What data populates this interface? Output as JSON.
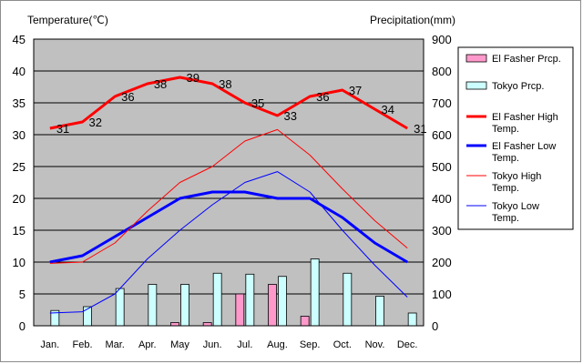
{
  "chart_data": {
    "type": "bar",
    "categories": [
      "Jan.",
      "Feb.",
      "Mar.",
      "Apr.",
      "May",
      "Jun.",
      "Jul.",
      "Aug.",
      "Sep.",
      "Oct.",
      "Nov.",
      "Dec."
    ],
    "ylabel_left": "Temperature(℃)",
    "ylabel_right": "Precipitation(mm)",
    "ylim_left": [
      0,
      45
    ],
    "ylim_right": [
      0,
      900
    ],
    "yticks_left": [
      "0",
      "5",
      "10",
      "15",
      "20",
      "25",
      "30",
      "35",
      "40",
      "45"
    ],
    "yticks_right": [
      "0",
      "100",
      "200",
      "300",
      "400",
      "500",
      "600",
      "700",
      "800",
      "900"
    ],
    "grid": true,
    "legend_position": "right",
    "bar_series": [
      {
        "name": "El Fasher Prcp.",
        "axis": "right",
        "color": "#ff99cc",
        "values": [
          0,
          0,
          0,
          0,
          10,
          10,
          100,
          130,
          30,
          0,
          0,
          0
        ]
      },
      {
        "name": "Tokyo Prcp.",
        "axis": "right",
        "color": "#ccffff",
        "values": [
          48,
          60,
          117,
          130,
          130,
          165,
          162,
          155,
          210,
          165,
          93,
          40
        ]
      }
    ],
    "line_series": [
      {
        "name": "El Fasher High Temp.",
        "axis": "left",
        "color": "#ff0000",
        "width": "thick",
        "values": [
          31,
          32,
          36,
          38,
          39,
          38,
          35,
          33,
          36,
          37,
          34,
          31
        ],
        "labels": [
          "31",
          "32",
          "36",
          "38",
          "39",
          "38",
          "35",
          "33",
          "36",
          "37",
          "34",
          "31"
        ]
      },
      {
        "name": "El Fasher Low Temp.",
        "axis": "left",
        "color": "#0000ff",
        "width": "thick",
        "values": [
          10,
          11,
          14,
          17,
          20,
          21,
          21,
          20,
          20,
          17,
          13,
          10
        ]
      },
      {
        "name": "Tokyo High Temp.",
        "axis": "left",
        "color": "#ff0000",
        "width": "thin",
        "values": [
          9.8,
          10.0,
          13.0,
          18.0,
          22.5,
          25.0,
          29.0,
          30.8,
          26.8,
          21.5,
          16.5,
          12.2
        ]
      },
      {
        "name": "Tokyo Low Temp.",
        "axis": "left",
        "color": "#0000ff",
        "width": "thin",
        "values": [
          2.0,
          2.2,
          5.0,
          10.5,
          15.0,
          19.0,
          22.5,
          24.2,
          21.0,
          15.0,
          9.5,
          4.5
        ]
      }
    ]
  },
  "legend": {
    "items": [
      {
        "label": "El Fasher Prcp.",
        "kind": "bar",
        "color": "#ff99cc"
      },
      {
        "label": "Tokyo Prcp.",
        "kind": "bar",
        "color": "#ccffff"
      },
      {
        "label": "El Fasher High Temp.",
        "kind": "line",
        "color": "#ff0000",
        "width": "thick"
      },
      {
        "label": "El Fasher Low Temp.",
        "kind": "line",
        "color": "#0000ff",
        "width": "thick"
      },
      {
        "label": "Tokyo High Temp.",
        "kind": "line",
        "color": "#ff0000",
        "width": "thin"
      },
      {
        "label": "Tokyo Low Temp.",
        "kind": "line",
        "color": "#0000ff",
        "width": "thin"
      }
    ]
  },
  "colors": {
    "plot_background": "#c0c0c0",
    "grid": "#000000"
  }
}
